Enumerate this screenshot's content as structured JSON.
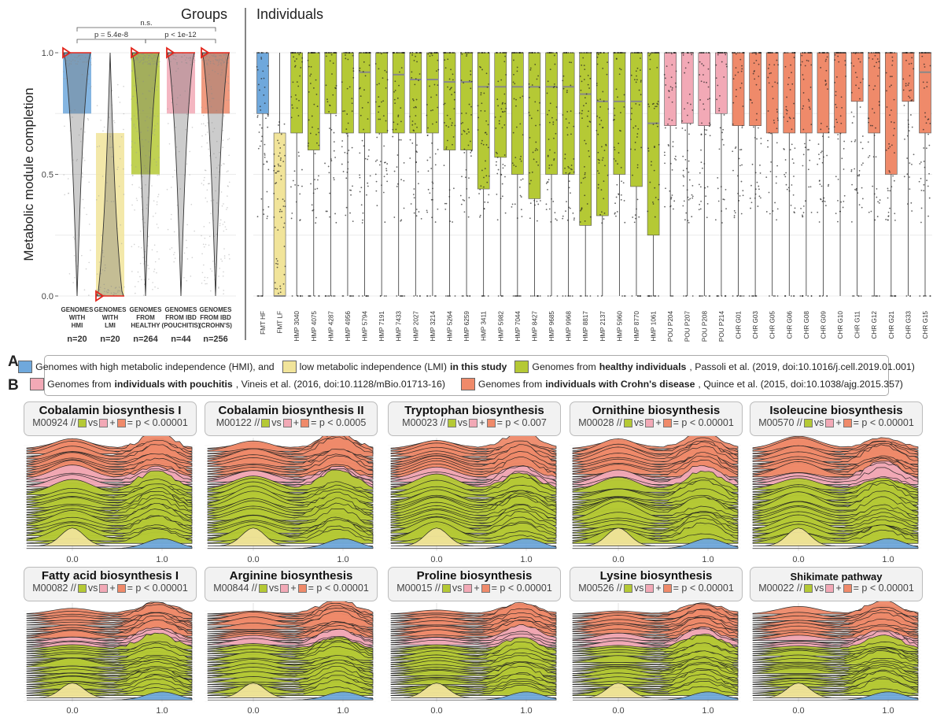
{
  "panels": {
    "groups_title": "Groups",
    "individuals_title": "Individuals",
    "tag_a": "A",
    "tag_b": "B"
  },
  "colors": {
    "hmi": "#6fa8dc",
    "lmi": "#f1e49a",
    "healthy": "#b5c935",
    "pouchitis": "#f2a9b6",
    "crohns": "#ef8a6a",
    "red_marker": "#e3261c"
  },
  "chart_data": [
    {
      "type": "box",
      "panel": "Groups",
      "ylabel": "Metabolic module completion",
      "ylim": [
        0,
        1
      ],
      "yticks": [
        "0.0",
        "0.5",
        "1.0"
      ],
      "groups": [
        {
          "label1": "GENOMES",
          "label2": "WITH",
          "label3": "HMI",
          "n": "n=20",
          "color": "hmi",
          "q1": 0.75,
          "median": 1.0,
          "q3": 1.0
        },
        {
          "label1": "GENOMES",
          "label2": "WITH",
          "label3": "LMI",
          "n": "n=20",
          "color": "lmi",
          "q1": 0.0,
          "median": 0.0,
          "q3": 0.67
        },
        {
          "label1": "GENOMES",
          "label2": "FROM",
          "label3": "HEALTHY",
          "n": "n=264",
          "color": "healthy",
          "q1": 0.5,
          "median": 1.0,
          "q3": 1.0
        },
        {
          "label1": "GENOMES",
          "label2": "FROM IBD",
          "label3": "(POUCHITIS)",
          "n": "n=44",
          "color": "pouchitis",
          "q1": 0.75,
          "median": 1.0,
          "q3": 1.0
        },
        {
          "label1": "GENOMES",
          "label2": "FROM IBD",
          "label3": "(CROHN'S)",
          "n": "n=256",
          "color": "crohns",
          "q1": 0.75,
          "median": 1.0,
          "q3": 1.0
        }
      ],
      "comparisons": [
        {
          "label": "n.s.",
          "from": 0,
          "to": 4
        },
        {
          "label": "p = 5.4e-8",
          "from": 0,
          "to": 2
        },
        {
          "label": "p < 1e-12",
          "from": 2,
          "to": 4
        }
      ]
    },
    {
      "type": "box",
      "panel": "Individuals",
      "ylim": [
        0,
        1
      ],
      "samples": [
        {
          "label": "FMT HF",
          "color": "hmi",
          "q1": 0.75,
          "median": 1.0,
          "q3": 1.0
        },
        {
          "label": "FMT LF",
          "color": "lmi",
          "q1": 0.0,
          "median": 0.0,
          "q3": 0.67
        },
        {
          "label": "HMP 3040",
          "color": "healthy",
          "q1": 0.67,
          "median": 1.0,
          "q3": 1.0
        },
        {
          "label": "HMP 4075",
          "color": "healthy",
          "q1": 0.6,
          "median": 1.0,
          "q3": 1.0
        },
        {
          "label": "HMP 4287",
          "color": "healthy",
          "q1": 0.75,
          "median": 1.0,
          "q3": 1.0
        },
        {
          "label": "HMP 4956",
          "color": "healthy",
          "q1": 0.67,
          "median": 1.0,
          "q3": 1.0
        },
        {
          "label": "HMP 5794",
          "color": "healthy",
          "q1": 0.67,
          "median": 0.92,
          "q3": 1.0
        },
        {
          "label": "HMP 7191",
          "color": "healthy",
          "q1": 0.67,
          "median": 1.0,
          "q3": 1.0
        },
        {
          "label": "HMP 7433",
          "color": "healthy",
          "q1": 0.67,
          "median": 0.91,
          "q3": 1.0
        },
        {
          "label": "HMP 2027",
          "color": "healthy",
          "q1": 0.67,
          "median": 0.89,
          "q3": 1.0
        },
        {
          "label": "HMP 3214",
          "color": "healthy",
          "q1": 0.67,
          "median": 0.89,
          "q3": 1.0
        },
        {
          "label": "HMP 5264",
          "color": "healthy",
          "q1": 0.6,
          "median": 0.88,
          "q3": 1.0
        },
        {
          "label": "HMP 6259",
          "color": "healthy",
          "q1": 0.6,
          "median": 0.88,
          "q3": 1.0
        },
        {
          "label": "HMP 3411",
          "color": "healthy",
          "q1": 0.44,
          "median": 0.86,
          "q3": 1.0
        },
        {
          "label": "HMP 5982",
          "color": "healthy",
          "q1": 0.57,
          "median": 0.86,
          "q3": 1.0
        },
        {
          "label": "HMP 7044",
          "color": "healthy",
          "q1": 0.5,
          "median": 0.86,
          "q3": 1.0
        },
        {
          "label": "HMP 8427",
          "color": "healthy",
          "q1": 0.4,
          "median": 0.86,
          "q3": 1.0
        },
        {
          "label": "HMP 9685",
          "color": "healthy",
          "q1": 0.5,
          "median": 0.86,
          "q3": 1.0
        },
        {
          "label": "HMP 9968",
          "color": "healthy",
          "q1": 0.5,
          "median": 0.86,
          "q3": 1.0
        },
        {
          "label": "HMP 8817",
          "color": "healthy",
          "q1": 0.29,
          "median": 0.83,
          "q3": 1.0
        },
        {
          "label": "HMP 2137",
          "color": "healthy",
          "q1": 0.33,
          "median": 0.8,
          "q3": 1.0
        },
        {
          "label": "HMP 5960",
          "color": "healthy",
          "q1": 0.5,
          "median": 0.8,
          "q3": 1.0
        },
        {
          "label": "HMP 8770",
          "color": "healthy",
          "q1": 0.45,
          "median": 0.8,
          "q3": 1.0
        },
        {
          "label": "HMP 1061",
          "color": "healthy",
          "q1": 0.25,
          "median": 0.71,
          "q3": 1.0
        },
        {
          "label": "POU P204",
          "color": "pouchitis",
          "q1": 0.7,
          "median": 1.0,
          "q3": 1.0
        },
        {
          "label": "POU P207",
          "color": "pouchitis",
          "q1": 0.71,
          "median": 1.0,
          "q3": 1.0
        },
        {
          "label": "POU P208",
          "color": "pouchitis",
          "q1": 0.7,
          "median": 1.0,
          "q3": 1.0
        },
        {
          "label": "POU P214",
          "color": "pouchitis",
          "q1": 0.75,
          "median": 1.0,
          "q3": 1.0
        },
        {
          "label": "CHR G01",
          "color": "crohns",
          "q1": 0.7,
          "median": 1.0,
          "q3": 1.0
        },
        {
          "label": "CHR G03",
          "color": "crohns",
          "q1": 0.7,
          "median": 1.0,
          "q3": 1.0
        },
        {
          "label": "CHR G05",
          "color": "crohns",
          "q1": 0.67,
          "median": 1.0,
          "q3": 1.0
        },
        {
          "label": "CHR G06",
          "color": "crohns",
          "q1": 0.67,
          "median": 1.0,
          "q3": 1.0
        },
        {
          "label": "CHR G08",
          "color": "crohns",
          "q1": 0.67,
          "median": 1.0,
          "q3": 1.0
        },
        {
          "label": "CHR G09",
          "color": "crohns",
          "q1": 0.67,
          "median": 1.0,
          "q3": 1.0
        },
        {
          "label": "CHR G10",
          "color": "crohns",
          "q1": 0.67,
          "median": 1.0,
          "q3": 1.0
        },
        {
          "label": "CHR G11",
          "color": "crohns",
          "q1": 0.8,
          "median": 1.0,
          "q3": 1.0
        },
        {
          "label": "CHR G12",
          "color": "crohns",
          "q1": 0.67,
          "median": 1.0,
          "q3": 1.0
        },
        {
          "label": "CHR G21",
          "color": "crohns",
          "q1": 0.5,
          "median": 1.0,
          "q3": 1.0
        },
        {
          "label": "CHR G33",
          "color": "crohns",
          "q1": 0.8,
          "median": 1.0,
          "q3": 1.0
        },
        {
          "label": "CHR G15",
          "color": "crohns",
          "q1": 0.67,
          "median": 0.92,
          "q3": 1.0
        }
      ]
    },
    {
      "type": "ridgeline",
      "x_ticks": [
        "0.0",
        "1.0"
      ],
      "modules": [
        {
          "name": "Cobalamin biosynthesis I",
          "id": "M00924",
          "p": "p < 0.00001"
        },
        {
          "name": "Cobalamin biosynthesis II",
          "id": "M00122",
          "p": "p < 0.0005"
        },
        {
          "name": "Tryptophan biosynthesis",
          "id": "M00023",
          "p": "p < 0.007"
        },
        {
          "name": "Ornithine biosynthesis",
          "id": "M00028",
          "p": "p < 0.00001"
        },
        {
          "name": "Isoleucine biosynthesis",
          "id": "M00570",
          "p": "p < 0.00001"
        },
        {
          "name": "Fatty acid biosynthesis I",
          "id": "M00082",
          "p": "p < 0.00001"
        },
        {
          "name": "Arginine biosynthesis",
          "id": "M00844",
          "p": "p < 0.00001"
        },
        {
          "name": "Proline biosynthesis",
          "id": "M00015",
          "p": "p < 0.00001"
        },
        {
          "name": "Lysine biosynthesis",
          "id": "M00526",
          "p": "p < 0.00001"
        },
        {
          "name": "Shikimate pathway",
          "id": "M00022",
          "p": "p < 0.00001"
        }
      ],
      "sub_sep": "//",
      "sub_vs": "vs",
      "sub_plus": "+",
      "sub_eq": "="
    }
  ],
  "legend": {
    "row1": [
      {
        "color": "hmi",
        "text": "Genomes with high metabolic independence (HMI), and"
      },
      {
        "color": "lmi",
        "text_pre": "low metabolic independence (LMI) ",
        "text_bold": "in this study",
        "text_post": ""
      },
      {
        "color": "healthy",
        "text_pre": "Genomes from ",
        "text_bold": "healthy individuals",
        "text_post": ", Passoli et al. (2019, doi:10.1016/j.cell.2019.01.001)"
      }
    ],
    "row2": [
      {
        "color": "pouchitis",
        "text_pre": "Genomes from ",
        "text_bold": "individuals with pouchitis",
        "text_post": ", Vineis et al. (2016, doi:10.1128/mBio.01713-16)"
      },
      {
        "color": "crohns",
        "text_pre": "Genomes from ",
        "text_bold": "individuals with Crohn's disease",
        "text_post": ", Quince et al. (2015, doi:10.1038/ajg.2015.357)"
      }
    ]
  }
}
